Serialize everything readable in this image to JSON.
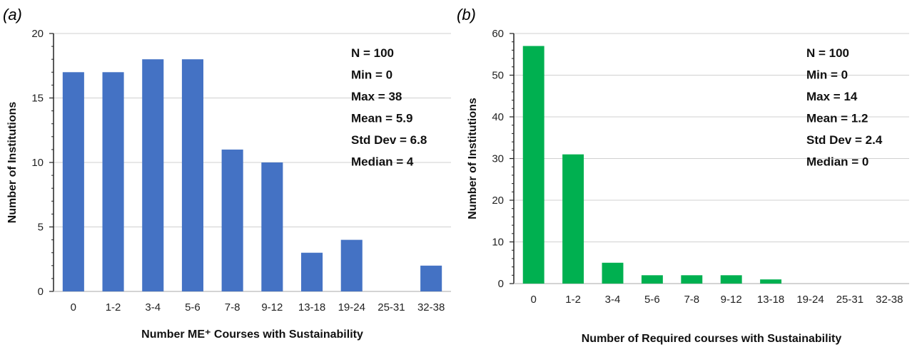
{
  "chart_data": [
    {
      "type": "bar",
      "panel_label": "(a)",
      "categories": [
        "0",
        "1-2",
        "3-4",
        "5-6",
        "7-8",
        "9-12",
        "13-18",
        "19-24",
        "25-31",
        "32-38"
      ],
      "values": [
        17,
        17,
        18,
        18,
        11,
        10,
        3,
        4,
        0,
        2
      ],
      "xlabel": "Number ME⁺ Courses with Sustainability",
      "ylabel": "Number of Institutions",
      "ylim": [
        0,
        20
      ],
      "yticks": [
        "0",
        "5",
        "10",
        "15",
        "20"
      ],
      "grid": true,
      "bar_color": "#4472C4",
      "stats": [
        "N = 100",
        "Min = 0",
        "Max = 38",
        "Mean = 5.9",
        "Std Dev = 6.8",
        "Median = 4"
      ],
      "stats_placement": "top-right"
    },
    {
      "type": "bar",
      "panel_label": "(b)",
      "categories": [
        "0",
        "1-2",
        "3-4",
        "5-6",
        "7-8",
        "9-12",
        "13-18",
        "19-24",
        "25-31",
        "32-38"
      ],
      "values": [
        57,
        31,
        5,
        2,
        2,
        2,
        1,
        0,
        0,
        0
      ],
      "xlabel": "Number of Required courses with Sustainability",
      "ylabel": "Number of Institutions",
      "ylim": [
        0,
        60
      ],
      "yticks": [
        "0",
        "10",
        "20",
        "30",
        "40",
        "50",
        "60"
      ],
      "grid": true,
      "bar_color": "#00B050",
      "stats": [
        "N = 100",
        "Min = 0",
        "Max = 14",
        "Mean = 1.2",
        "Std Dev = 2.4",
        "Median = 0"
      ],
      "stats_placement": "top-right"
    }
  ]
}
